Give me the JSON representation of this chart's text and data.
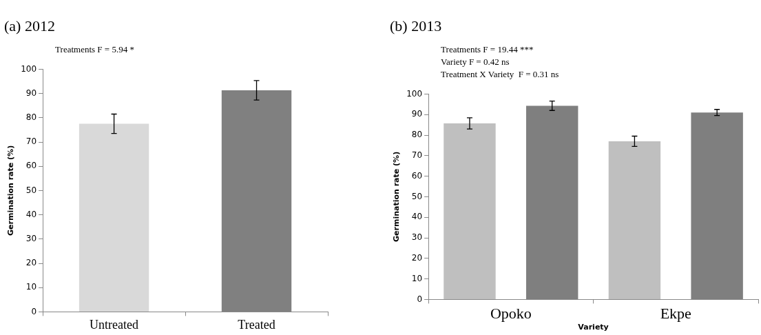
{
  "chart_data": [
    {
      "type": "bar",
      "title": "(a) 2012",
      "annotations": [
        "Treatments F = 5.94 *"
      ],
      "ylabel": "Germination rate (%)",
      "categories": [
        "Untreated",
        "Treated"
      ],
      "values": [
        77.5,
        91.3
      ],
      "errors": [
        4,
        4
      ],
      "colors": [
        "#d9d9d9",
        "#808080"
      ],
      "ylim": [
        0,
        100
      ],
      "yticks": [
        0,
        10,
        20,
        30,
        40,
        50,
        60,
        70,
        80,
        90,
        100
      ],
      "grid": false,
      "legend": false
    },
    {
      "type": "bar",
      "title": "(b) 2013",
      "annotations": [
        "Treatments F = 19.44 ***",
        "Variety F = 0.42 ns",
        "Treatment X Variety  F = 0.31 ns"
      ],
      "xlabel": "Variety",
      "ylabel": "Germination rate (%)",
      "categories": [
        "Opoko",
        "Ekpe"
      ],
      "series": [
        {
          "color": "#bfbfbf",
          "values": [
            85.7,
            77
          ],
          "errors": [
            2.7,
            2.5
          ]
        },
        {
          "color": "#7f7f7f",
          "values": [
            94.3,
            91
          ],
          "errors": [
            2.3,
            1.5
          ]
        }
      ],
      "ylim": [
        0,
        100
      ],
      "yticks": [
        0,
        10,
        20,
        30,
        40,
        50,
        60,
        70,
        80,
        90,
        100
      ],
      "grid": false,
      "legend": false
    }
  ]
}
